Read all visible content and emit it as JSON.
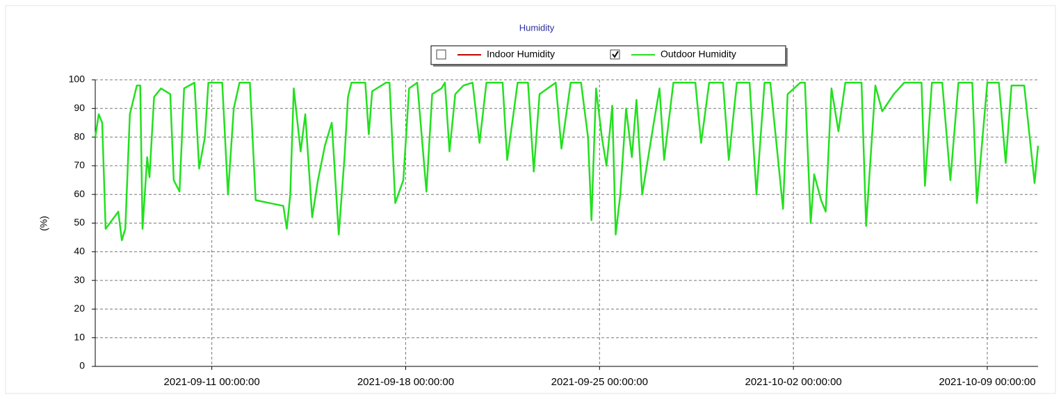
{
  "chart_data": {
    "type": "line",
    "title": "Humidity",
    "y_label": "(%)",
    "xlim": [
      "2021-09-06 19:00:00",
      "2021-10-10 20:00:00"
    ],
    "xticks": [
      "2021-09-11 00:00:00",
      "2021-09-18 00:00:00",
      "2021-09-25 00:00:00",
      "2021-10-02 00:00:00",
      "2021-10-09 00:00:00"
    ],
    "ylim": [
      0,
      100
    ],
    "yticks": [
      0,
      10,
      20,
      30,
      40,
      50,
      60,
      70,
      80,
      90,
      100
    ],
    "grid": true,
    "x": [
      "2021-09-06 19:00:00",
      "2021-09-06 22:00:00",
      "2021-09-07 01:00:00",
      "2021-09-07 04:00:00",
      "2021-09-07 15:00:00",
      "2021-09-07 18:00:00",
      "2021-09-07 21:00:00",
      "2021-09-08 01:00:00",
      "2021-09-08 07:00:00",
      "2021-09-08 10:00:00",
      "2021-09-08 12:00:00",
      "2021-09-08 16:00:00",
      "2021-09-08 18:00:00",
      "2021-09-08 22:00:00",
      "2021-09-09 04:00:00",
      "2021-09-09 12:00:00",
      "2021-09-09 15:00:00",
      "2021-09-09 20:00:00",
      "2021-09-10 00:00:00",
      "2021-09-10 09:00:00",
      "2021-09-10 13:00:00",
      "2021-09-10 18:00:00",
      "2021-09-10 21:00:00",
      "2021-09-11 09:00:00",
      "2021-09-11 14:00:00",
      "2021-09-11 19:00:00",
      "2021-09-12 00:00:00",
      "2021-09-12 09:00:00",
      "2021-09-12 14:00:00",
      "2021-09-13 14:00:00",
      "2021-09-13 17:00:00",
      "2021-09-13 20:00:00",
      "2021-09-13 23:00:00",
      "2021-09-14 05:00:00",
      "2021-09-14 09:00:00",
      "2021-09-14 15:00:00",
      "2021-09-14 20:00:00",
      "2021-09-15 02:00:00",
      "2021-09-15 08:00:00",
      "2021-09-15 14:00:00",
      "2021-09-15 19:00:00",
      "2021-09-15 22:00:00",
      "2021-09-16 01:00:00",
      "2021-09-16 13:00:00",
      "2021-09-16 16:00:00",
      "2021-09-16 19:00:00",
      "2021-09-17 07:00:00",
      "2021-09-17 10:00:00",
      "2021-09-17 15:00:00",
      "2021-09-17 22:00:00",
      "2021-09-18 03:00:00",
      "2021-09-18 10:00:00",
      "2021-09-18 18:00:00",
      "2021-09-18 23:00:00",
      "2021-09-19 07:00:00",
      "2021-09-19 10:00:00",
      "2021-09-19 14:00:00",
      "2021-09-19 19:00:00",
      "2021-09-20 02:00:00",
      "2021-09-20 10:00:00",
      "2021-09-20 16:00:00",
      "2021-09-20 22:00:00",
      "2021-09-21 12:00:00",
      "2021-09-21 16:00:00",
      "2021-09-22 01:00:00",
      "2021-09-22 10:00:00",
      "2021-09-22 15:00:00",
      "2021-09-22 20:00:00",
      "2021-09-23 10:00:00",
      "2021-09-23 15:00:00",
      "2021-09-23 23:00:00",
      "2021-09-24 08:00:00",
      "2021-09-24 14:00:00",
      "2021-09-24 17:00:00",
      "2021-09-24 21:00:00",
      "2021-09-25 02:00:00",
      "2021-09-25 06:00:00",
      "2021-09-25 11:00:00",
      "2021-09-25 14:00:00",
      "2021-09-25 18:00:00",
      "2021-09-25 23:00:00",
      "2021-09-26 04:00:00",
      "2021-09-26 08:00:00",
      "2021-09-26 13:00:00",
      "2021-09-26 23:00:00",
      "2021-09-27 04:00:00",
      "2021-09-27 08:00:00",
      "2021-09-27 16:00:00",
      "2021-09-28 11:00:00",
      "2021-09-28 16:00:00",
      "2021-09-28 23:00:00",
      "2021-09-29 11:00:00",
      "2021-09-29 16:00:00",
      "2021-09-29 23:00:00",
      "2021-09-30 10:00:00",
      "2021-09-30 16:00:00",
      "2021-09-30 23:00:00",
      "2021-10-01 04:00:00",
      "2021-10-01 15:00:00",
      "2021-10-01 19:00:00",
      "2021-10-02 06:00:00",
      "2021-10-02 10:00:00",
      "2021-10-02 15:00:00",
      "2021-10-02 18:00:00",
      "2021-10-03 00:00:00",
      "2021-10-03 04:00:00",
      "2021-10-03 09:00:00",
      "2021-10-03 15:00:00",
      "2021-10-03 21:00:00",
      "2021-10-04 11:00:00",
      "2021-10-04 15:00:00",
      "2021-10-04 23:00:00",
      "2021-10-05 05:00:00",
      "2021-10-05 15:00:00",
      "2021-10-06 00:00:00",
      "2021-10-06 15:00:00",
      "2021-10-06 18:00:00",
      "2021-10-07 00:00:00",
      "2021-10-07 09:00:00",
      "2021-10-07 16:00:00",
      "2021-10-07 23:00:00",
      "2021-10-08 11:00:00",
      "2021-10-08 15:00:00",
      "2021-10-09 00:00:00",
      "2021-10-09 10:00:00",
      "2021-10-09 16:00:00",
      "2021-10-09 21:00:00",
      "2021-10-10 08:00:00",
      "2021-10-10 17:00:00",
      "2021-10-10 20:00:00"
    ],
    "series": [
      {
        "name": "Indoor Humidity",
        "color": "#c00000",
        "visible": false
      },
      {
        "name": "Outdoor Humidity",
        "color": "#22e01e",
        "visible": true,
        "values": [
          80,
          88,
          85,
          48,
          54,
          44,
          48,
          88,
          98,
          98,
          48,
          73,
          66,
          94,
          97,
          95,
          65,
          61,
          97,
          99,
          69,
          80,
          99,
          99,
          60,
          90,
          99,
          99,
          58,
          56,
          48,
          60,
          97,
          75,
          88,
          52,
          65,
          77,
          85,
          46,
          73,
          94,
          99,
          99,
          81,
          96,
          99,
          99,
          57,
          65,
          97,
          99,
          61,
          95,
          97,
          99,
          75,
          95,
          98,
          99,
          78,
          99,
          99,
          72,
          99,
          99,
          68,
          95,
          99,
          76,
          99,
          99,
          80,
          51,
          97,
          80,
          70,
          91,
          46,
          60,
          90,
          73,
          93,
          60,
          85,
          97,
          72,
          99,
          99,
          78,
          99,
          99,
          72,
          99,
          99,
          60,
          99,
          99,
          55,
          95,
          99,
          99,
          50,
          67,
          58,
          54,
          97,
          82,
          99,
          99,
          49,
          98,
          89,
          95,
          99,
          99,
          63,
          99,
          99,
          65,
          99,
          99,
          57,
          99,
          99,
          71,
          98,
          98,
          64,
          77
        ]
      }
    ]
  }
}
